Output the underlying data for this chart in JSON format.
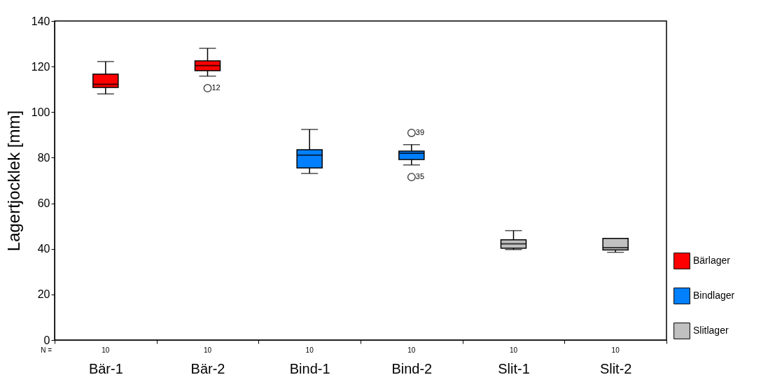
{
  "chart_data": {
    "type": "box",
    "ylabel": "Lagertjocklek [mm]",
    "categories": [
      "Bär-1",
      "Bär-2",
      "Bind-1",
      "Bind-2",
      "Slit-1",
      "Slit-2"
    ],
    "ylim": [
      0,
      140
    ],
    "yticks": [
      0,
      20,
      40,
      60,
      80,
      100,
      120,
      140
    ],
    "grid": false,
    "legend": "bottom right",
    "series": [
      {
        "name": "Bärlager",
        "color": "#ff0000",
        "boxes": [
          {
            "low": 108,
            "q1": 110.8,
            "median": 112.2,
            "q3": 116.7,
            "high": 122.2
          },
          {
            "low": 115.8,
            "q1": 118.2,
            "median": 120.4,
            "q3": 122.5,
            "high": 128,
            "outliers": [
              110.5
            ]
          },
          null,
          null,
          null,
          null
        ]
      },
      {
        "name": "Bindlager",
        "color": "#0080ff",
        "boxes": [
          null,
          null,
          {
            "low": 73.1,
            "q1": 75.5,
            "median": 81.1,
            "q3": 83.5,
            "high": 92.4
          },
          {
            "low": 76.8,
            "q1": 79.2,
            "median": 82,
            "q3": 82.9,
            "high": 85.7,
            "outliers": [
              90.9,
              71.5
            ]
          },
          null,
          null
        ]
      },
      {
        "name": "Slitlager",
        "color": "#c0c0c0",
        "boxes": [
          null,
          null,
          null,
          null,
          {
            "low": 39.7,
            "q1": 40.3,
            "median": 42.2,
            "q3": 44,
            "high": 48
          },
          {
            "low": 38.5,
            "q1": 39.5,
            "median": 40.5,
            "q3": 44.6,
            "high": 44.6
          }
        ]
      }
    ],
    "annotations": [
      "12",
      "39",
      "35",
      "N =",
      "10",
      "10",
      "10",
      "10",
      "10",
      "10"
    ]
  }
}
